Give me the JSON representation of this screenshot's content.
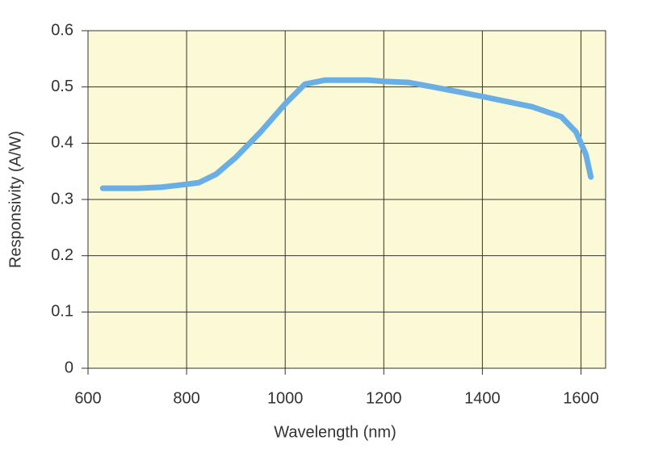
{
  "chart_data": {
    "type": "line",
    "x_label": "Wavelength (nm)",
    "y_label": "Responsivity (A/W)",
    "x": [
      630,
      700,
      750,
      800,
      825,
      860,
      900,
      950,
      1000,
      1040,
      1080,
      1170,
      1200,
      1250,
      1300,
      1400,
      1500,
      1560,
      1590,
      1610,
      1620
    ],
    "values": [
      0.32,
      0.32,
      0.322,
      0.327,
      0.33,
      0.345,
      0.375,
      0.42,
      0.47,
      0.505,
      0.512,
      0.512,
      0.51,
      0.508,
      0.5,
      0.483,
      0.465,
      0.447,
      0.42,
      0.38,
      0.34
    ],
    "color": "#6aaee6",
    "background": "#fcf9d6",
    "xlim": [
      600,
      1650
    ],
    "xticks": [
      600,
      800,
      1000,
      1200,
      1400,
      1600
    ],
    "ylim": [
      0,
      0.6
    ],
    "yticks": [
      0,
      0.1,
      0.2,
      0.3,
      0.4,
      0.5,
      0.6
    ],
    "grid": true
  }
}
